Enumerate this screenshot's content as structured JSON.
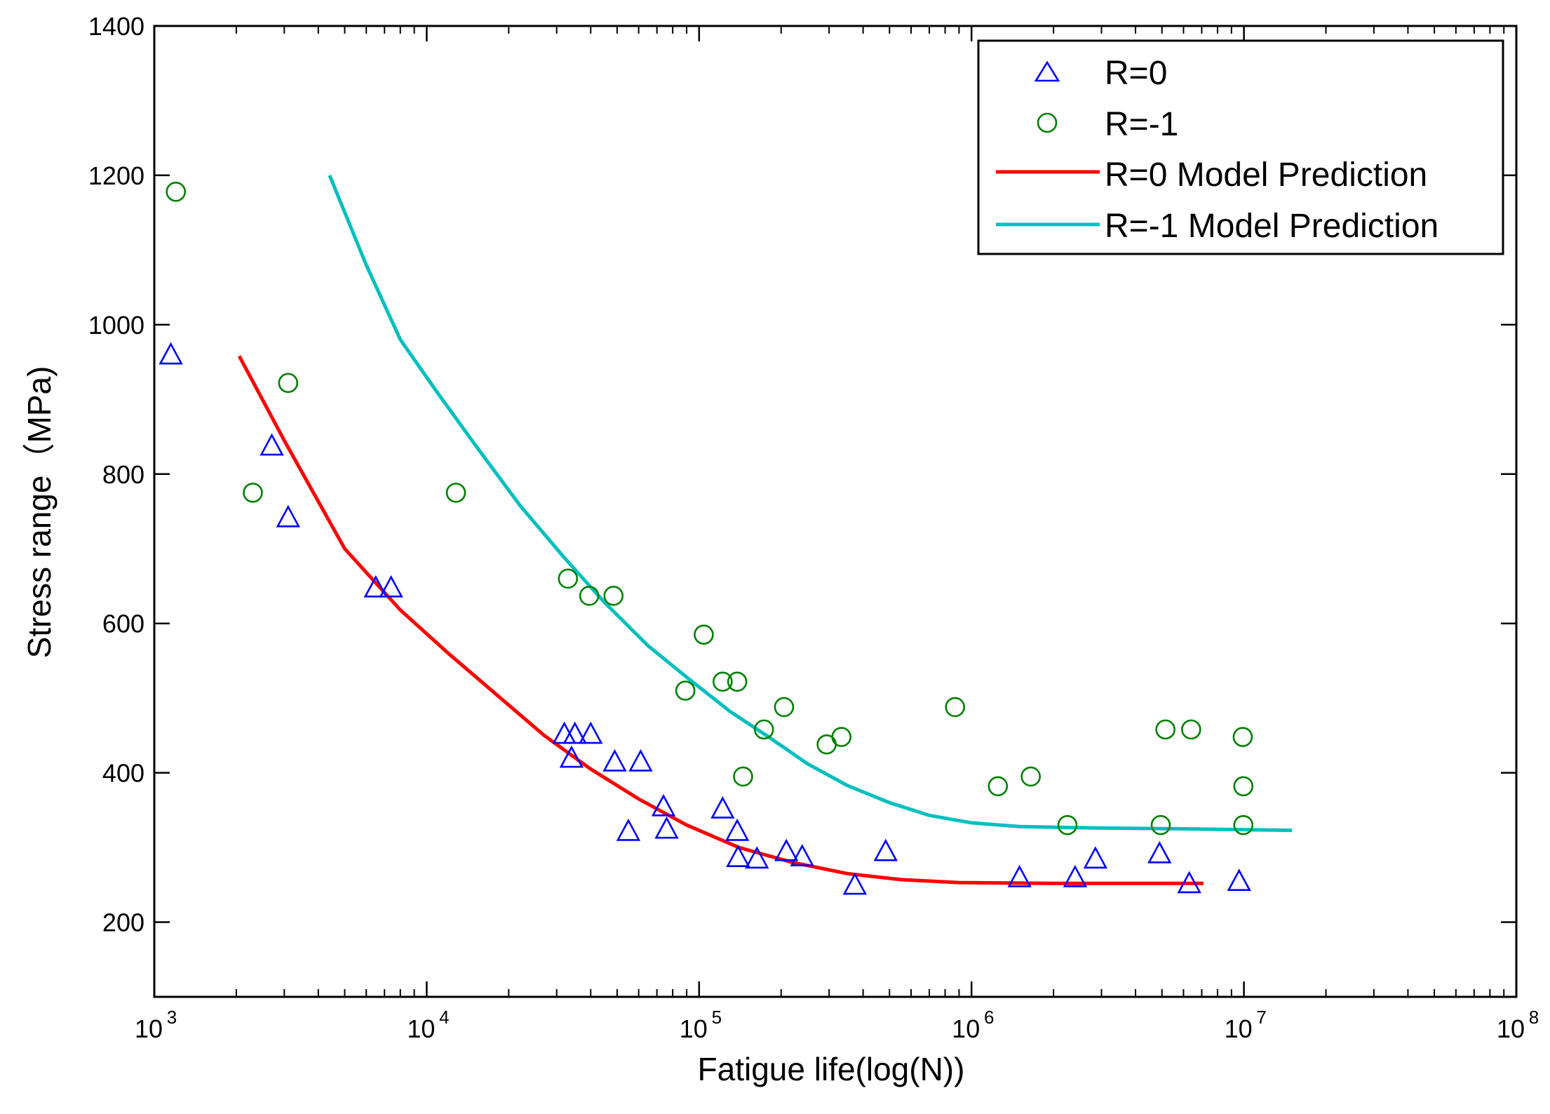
{
  "chart_data": {
    "type": "scatter",
    "title": "",
    "xlabel": "Fatigue life(log(N))",
    "ylabel": "Stress range（MPa)",
    "xscale": "log",
    "xlim": [
      1000,
      100000000
    ],
    "ylim": [
      100,
      1400
    ],
    "yticks": [
      200,
      400,
      600,
      800,
      1000,
      1200,
      1400
    ],
    "yticklabels": [
      "200",
      "400",
      "600",
      "800",
      "1000",
      "1200",
      "1400"
    ],
    "xticks": [
      1000,
      10000,
      100000,
      1000000,
      10000000,
      100000000
    ],
    "xtick_base": "10",
    "xtick_exponents": [
      "3",
      "4",
      "5",
      "6",
      "7",
      "8"
    ],
    "legend_position": "top-right",
    "series": [
      {
        "name": "R=0",
        "kind": "points",
        "marker": "triangle",
        "color": "#0000ff",
        "points": [
          [
            1150,
            960
          ],
          [
            2700,
            838
          ],
          [
            3100,
            742
          ],
          [
            6500,
            648
          ],
          [
            7400,
            648
          ],
          [
            32000,
            452
          ],
          [
            35000,
            452
          ],
          [
            40000,
            452
          ],
          [
            34000,
            420
          ],
          [
            49000,
            415
          ],
          [
            61000,
            415
          ],
          [
            55000,
            322
          ],
          [
            74000,
            355
          ],
          [
            76000,
            325
          ],
          [
            122000,
            352
          ],
          [
            138000,
            322
          ],
          [
            139000,
            287
          ],
          [
            163000,
            285
          ],
          [
            209000,
            295
          ],
          [
            239000,
            288
          ],
          [
            373000,
            250
          ],
          [
            484000,
            295
          ],
          [
            1500000,
            260
          ],
          [
            2400000,
            260
          ],
          [
            2850000,
            285
          ],
          [
            4900000,
            292
          ],
          [
            6300000,
            252
          ],
          [
            9600000,
            255
          ]
        ]
      },
      {
        "name": "R=-1",
        "kind": "points",
        "marker": "circle",
        "color": "#008000",
        "points": [
          [
            1200,
            1178
          ],
          [
            2300,
            775
          ],
          [
            3100,
            922
          ],
          [
            12800,
            775
          ],
          [
            33000,
            660
          ],
          [
            39500,
            637
          ],
          [
            48500,
            637
          ],
          [
            104000,
            585
          ],
          [
            89000,
            510
          ],
          [
            122000,
            522
          ],
          [
            138000,
            522
          ],
          [
            173000,
            458
          ],
          [
            205000,
            488
          ],
          [
            145000,
            395
          ],
          [
            294000,
            438
          ],
          [
            333000,
            448
          ],
          [
            870000,
            488
          ],
          [
            1250000,
            382
          ],
          [
            1650000,
            395
          ],
          [
            2250000,
            330
          ],
          [
            4950000,
            330
          ],
          [
            5150000,
            458
          ],
          [
            6400000,
            458
          ],
          [
            9900000,
            448
          ],
          [
            9950000,
            382
          ],
          [
            9950000,
            330
          ]
        ]
      },
      {
        "name": "R=0 Model Prediction",
        "kind": "line",
        "color": "#ff0000",
        "points": [
          [
            2050,
            958
          ],
          [
            3000,
            845
          ],
          [
            5000,
            700
          ],
          [
            8000,
            618
          ],
          [
            12000,
            560
          ],
          [
            18000,
            505
          ],
          [
            27000,
            450
          ],
          [
            40000,
            405
          ],
          [
            60000,
            365
          ],
          [
            90000,
            330
          ],
          [
            140000,
            300
          ],
          [
            220000,
            280
          ],
          [
            350000,
            265
          ],
          [
            550000,
            257
          ],
          [
            900000,
            253
          ],
          [
            2000000,
            252
          ],
          [
            7100000,
            252
          ]
        ]
      },
      {
        "name": "R=-1 Model Prediction",
        "kind": "line",
        "color": "#00bfbf",
        "points": [
          [
            4400,
            1200
          ],
          [
            6000,
            1080
          ],
          [
            8000,
            980
          ],
          [
            11000,
            908
          ],
          [
            15000,
            840
          ],
          [
            22000,
            758
          ],
          [
            32000,
            688
          ],
          [
            45000,
            628
          ],
          [
            65000,
            570
          ],
          [
            90000,
            528
          ],
          [
            130000,
            482
          ],
          [
            180000,
            448
          ],
          [
            250000,
            412
          ],
          [
            350000,
            383
          ],
          [
            500000,
            360
          ],
          [
            700000,
            343
          ],
          [
            1000000,
            333
          ],
          [
            1500000,
            328
          ],
          [
            3000000,
            326
          ],
          [
            6000000,
            325
          ],
          [
            15000000,
            323
          ]
        ]
      }
    ]
  }
}
